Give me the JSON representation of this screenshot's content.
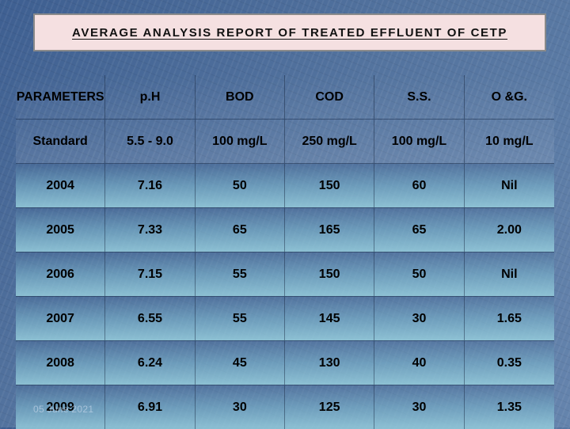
{
  "title": "AVERAGE ANALYSIS REPORT OF TREATED EFFLUENT OF CETP",
  "headers": [
    "PARAMETERS",
    "p.H",
    "BOD",
    "COD",
    "S.S.",
    "O &G."
  ],
  "standard": [
    "Standard",
    "5.5 - 9.0",
    "100 mg/L",
    "250 mg/L",
    "100 mg/L",
    "10 mg/L"
  ],
  "rows": [
    [
      "2004",
      "7.16",
      "50",
      "150",
      "60",
      "Nil"
    ],
    [
      "2005",
      "7.33",
      "65",
      "165",
      "65",
      "2.00"
    ],
    [
      "2006",
      "7.15",
      "55",
      "150",
      "50",
      "Nil"
    ],
    [
      "2007",
      "6.55",
      "55",
      "145",
      "30",
      "1.65"
    ],
    [
      "2008",
      "6.24",
      "45",
      "130",
      "40",
      "0.35"
    ],
    [
      "2009",
      "6.91",
      "30",
      "125",
      "30",
      "1.35"
    ]
  ],
  "footer_date": "05 June 2021"
}
